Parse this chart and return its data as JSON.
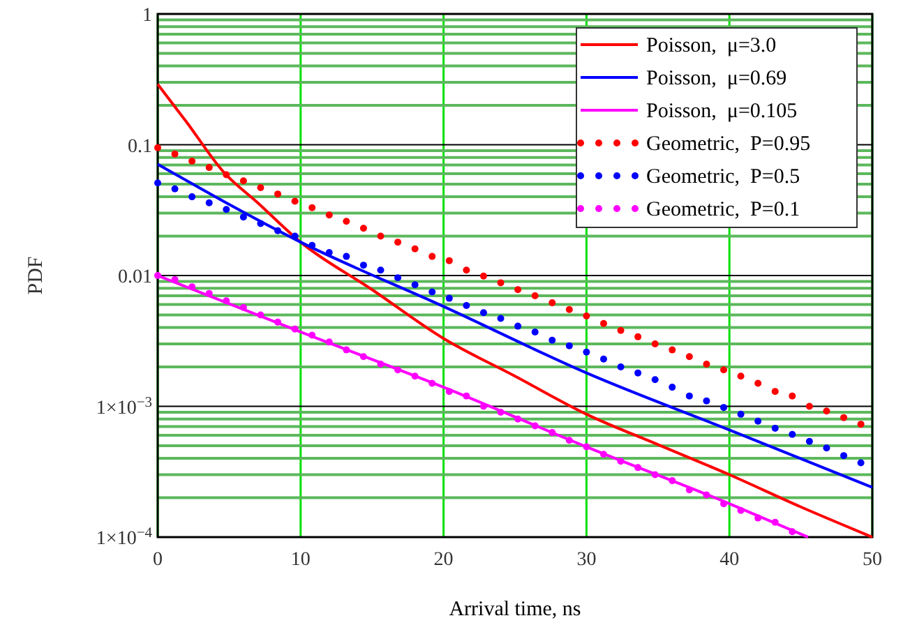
{
  "chart_data": {
    "type": "line",
    "xlabel": "Arrival time, ns",
    "ylabel": "PDF",
    "log": "y",
    "grid": true,
    "legend": "top right",
    "xlim": [
      0,
      50
    ],
    "xticks": [
      0,
      10,
      20,
      30,
      40,
      50
    ],
    "ylim": [
      0.0001,
      1
    ],
    "yticks": [
      1,
      {
        "value": 0.9,
        "label": null
      },
      {
        "value": 0.8,
        "label": null
      },
      {
        "value": 0.7,
        "label": null
      },
      {
        "value": 0.6,
        "label": null
      },
      {
        "value": 0.5,
        "label": null
      },
      {
        "value": 0.4,
        "label": null
      },
      {
        "value": 0.3,
        "label": null
      },
      {
        "value": 0.2,
        "label": null
      },
      0.1,
      {
        "value": 0.09,
        "label": null
      },
      {
        "value": 0.08,
        "label": null
      },
      {
        "value": 0.07,
        "label": null
      },
      {
        "value": 0.06,
        "label": null
      },
      {
        "value": 0.05,
        "label": null
      },
      {
        "value": 0.04,
        "label": null
      },
      {
        "value": 0.03,
        "label": null
      },
      {
        "value": 0.02,
        "label": null
      },
      0.01,
      {
        "value": 0.009,
        "label": null
      },
      {
        "value": 0.008,
        "label": null
      },
      {
        "value": 0.007,
        "label": null
      },
      {
        "value": 0.006,
        "label": null
      },
      {
        "value": 0.005,
        "label": null
      },
      {
        "value": 0.004,
        "label": null
      },
      {
        "value": 0.003,
        "label": null
      },
      {
        "value": 0.002,
        "label": null
      },
      {
        "value": 0.001,
        "label": "1×10$^{−3}$"
      },
      {
        "value": 0.0009,
        "label": null
      },
      {
        "value": 0.0008,
        "label": null
      },
      {
        "value": 0.0007,
        "label": null
      },
      {
        "value": 0.0006,
        "label": null
      },
      {
        "value": 0.0005,
        "label": null
      },
      {
        "value": 0.0004,
        "label": null
      },
      {
        "value": 0.0003,
        "label": null
      },
      {
        "value": 0.0002,
        "label": null
      },
      {
        "value": 0.0001,
        "label": "1×10$^{−4}$"
      }
    ],
    "series": [
      {
        "name": "Poisson,  μ=3.0",
        "color": "#ff0000",
        "line_style": "solid",
        "x": [
          0,
          2,
          4.6,
          7,
          10,
          15,
          20,
          25,
          30,
          35,
          40,
          45,
          50
        ],
        "values": [
          0.29,
          0.15,
          0.062,
          0.036,
          0.018,
          0.0078,
          0.0033,
          0.0017,
          0.00087,
          0.00051,
          0.0003,
          0.00017,
          0.0001
        ]
      },
      {
        "name": "Poisson,  μ=0.69",
        "color": "#0000ff",
        "line_style": "solid",
        "x": [
          0,
          10,
          20,
          30,
          40,
          50
        ],
        "values": [
          0.071,
          0.018,
          0.0058,
          0.0018,
          0.00066,
          0.00024
        ]
      },
      {
        "name": "Poisson,  μ=0.105",
        "color": "#ff00ff",
        "line_style": "solid",
        "x": [
          0,
          10,
          20,
          30,
          40,
          45.5
        ],
        "values": [
          0.01,
          0.0037,
          0.0014,
          0.00049,
          0.00018,
          0.0001
        ]
      },
      {
        "name": "Geometric,  P=0.95",
        "type": "scatter",
        "color": "#ff0000",
        "marker": "circle",
        "x": [
          0,
          1.2,
          2.4,
          3.6,
          4.8,
          6,
          7.2,
          8.4,
          9.6,
          10.8,
          12,
          13.2,
          14.4,
          15.6,
          16.8,
          18,
          19.2,
          20.4,
          21.6,
          22.8,
          24,
          25.2,
          26.4,
          27.6,
          28.8,
          30,
          31.2,
          32.4,
          33.6,
          34.8,
          36,
          37.2,
          38.4,
          39.6,
          40.8,
          42,
          43.2,
          44.4,
          45.6,
          46.8,
          48,
          49.2
        ],
        "values": [
          0.095,
          0.085,
          0.075,
          0.067,
          0.059,
          0.053,
          0.047,
          0.042,
          0.037,
          0.033,
          0.029,
          0.026,
          0.023,
          0.02,
          0.018,
          0.016,
          0.014,
          0.013,
          0.011,
          0.0099,
          0.0088,
          0.0078,
          0.007,
          0.0062,
          0.0055,
          0.0049,
          0.0043,
          0.0038,
          0.0034,
          0.003,
          0.0027,
          0.0024,
          0.0021,
          0.0019,
          0.0017,
          0.0015,
          0.0013,
          0.0012,
          0.001,
          0.00092,
          0.00082,
          0.00073
        ]
      },
      {
        "name": "Geometric,  P=0.5",
        "type": "scatter",
        "color": "#0000ff",
        "marker": "circle",
        "x": [
          0,
          1.2,
          2.4,
          3.6,
          4.8,
          6,
          7.2,
          8.4,
          9.6,
          10.8,
          12,
          13.2,
          14.4,
          15.6,
          16.8,
          18,
          19.2,
          20.4,
          21.6,
          22.8,
          24,
          25.2,
          26.4,
          27.6,
          28.8,
          30,
          31.2,
          32.4,
          33.6,
          34.8,
          36,
          37.2,
          38.4,
          39.6,
          40.8,
          42,
          43.2,
          44.4,
          45.6,
          46.8,
          48,
          49.2
        ],
        "values": [
          0.051,
          0.046,
          0.04,
          0.036,
          0.032,
          0.028,
          0.025,
          0.022,
          0.02,
          0.017,
          0.015,
          0.014,
          0.012,
          0.011,
          0.0096,
          0.0085,
          0.0075,
          0.0067,
          0.0059,
          0.0052,
          0.0047,
          0.0041,
          0.0037,
          0.0032,
          0.0029,
          0.0026,
          0.0023,
          0.002,
          0.0018,
          0.0016,
          0.0014,
          0.0012,
          0.0011,
          0.00098,
          0.00087,
          0.00077,
          0.00068,
          0.00061,
          0.00054,
          0.00048,
          0.00042,
          0.00037
        ]
      },
      {
        "name": "Geometric,  P=0.1",
        "type": "scatter",
        "color": "#ff00ff",
        "marker": "circle",
        "x": [
          0,
          1.2,
          2.4,
          3.6,
          4.8,
          6,
          7.2,
          8.4,
          9.6,
          10.8,
          12,
          13.2,
          14.4,
          15.6,
          16.8,
          18,
          19.2,
          20.4,
          21.6,
          22.8,
          24,
          25.2,
          26.4,
          27.6,
          28.8,
          30,
          31.2,
          32.4,
          33.6,
          34.8,
          36,
          37.2,
          38.4,
          39.6,
          40.8,
          42,
          43.2,
          44.4
        ],
        "values": [
          0.01,
          0.0093,
          0.0082,
          0.0073,
          0.0064,
          0.0057,
          0.005,
          0.0044,
          0.0039,
          0.0035,
          0.0031,
          0.0027,
          0.0024,
          0.0021,
          0.0019,
          0.0017,
          0.0015,
          0.0013,
          0.0012,
          0.001,
          0.0009,
          0.0008,
          0.00071,
          0.00063,
          0.00055,
          0.00049,
          0.00043,
          0.00038,
          0.00034,
          0.0003,
          0.00027,
          0.00023,
          0.00021,
          0.00018,
          0.00016,
          0.00014,
          0.00013,
          0.00011
        ]
      }
    ]
  }
}
